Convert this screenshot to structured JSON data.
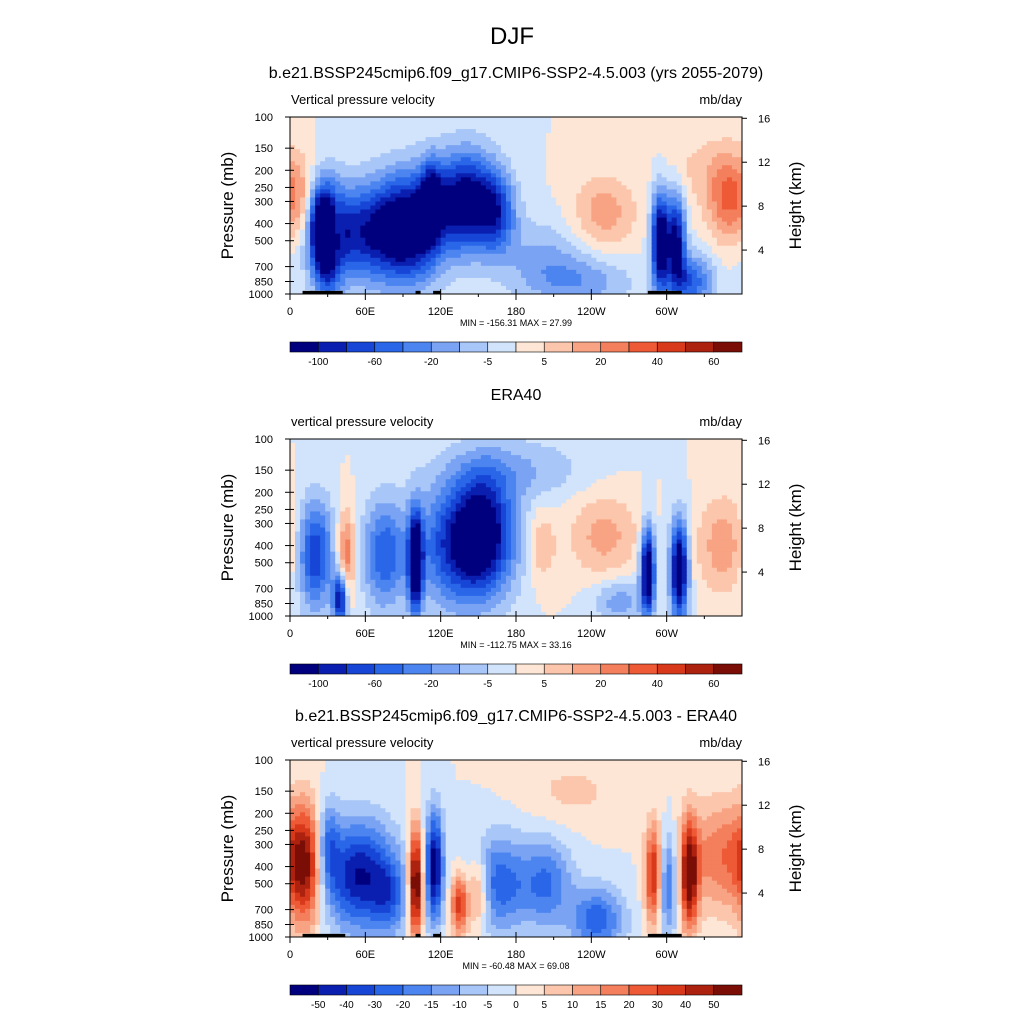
{
  "figure_title": "DJF",
  "colorbar_palettes": {
    "full": [
      "#00007f",
      "#0a1fb0",
      "#1746d6",
      "#2a66e8",
      "#4d85f0",
      "#7aa4f3",
      "#a8c6f7",
      "#d2e4fb",
      "#fde6d5",
      "#fbc6ac",
      "#f8a383",
      "#f47f5c",
      "#ee5a36",
      "#d8391a",
      "#ad220f",
      "#7a0e06"
    ],
    "diff": [
      "#00007f",
      "#0a1fb0",
      "#1746d6",
      "#2a66e8",
      "#4d85f0",
      "#7aa4f3",
      "#a8c6f7",
      "#d2e4fb",
      "#fde6d5",
      "#fbc6ac",
      "#f8a383",
      "#f47f5c",
      "#ee5a36",
      "#d8391a",
      "#ad220f",
      "#7a0e06"
    ]
  },
  "land_color": "#000000",
  "chart_data": [
    {
      "type": "heatmap",
      "title": "b.e21.BSSP245cmip6.f09_g17.CMIP6-SSP2-4.5.003 (yrs 2055-2079)",
      "left_label": "Vertical pressure velocity",
      "right_label": "mb/day",
      "ylabel": "Pressure (mb)",
      "y2label": "Height (km)",
      "x_ticks": [
        "0",
        "60E",
        "120E",
        "180",
        "120W",
        "60W"
      ],
      "x_tick_lon": [
        0,
        60,
        120,
        180,
        240,
        300
      ],
      "xlim": [
        0,
        360
      ],
      "y_ticks": [
        100,
        150,
        200,
        250,
        300,
        400,
        500,
        700,
        850,
        1000
      ],
      "ylim": [
        1000,
        100
      ],
      "y_scale": "log",
      "y2_ticks": [
        "16",
        "12",
        "8",
        "4"
      ],
      "y2_tick_km": [
        16,
        12,
        8,
        4
      ],
      "stats": "MIN = -156.31  MAX =  27.99",
      "colorbar_labels": [
        "-100",
        "-60",
        "-20",
        "-5",
        "5",
        "20",
        "40",
        "60"
      ],
      "land_lon": [
        [
          10,
          42
        ],
        [
          100,
          104
        ],
        [
          114,
          120
        ],
        [
          285,
          312
        ]
      ],
      "features": [
        {
          "lon": 55,
          "p": 450,
          "sx": 28,
          "sy": 0.45,
          "a": -60
        },
        {
          "lon": 95,
          "p": 420,
          "sx": 18,
          "sy": 0.5,
          "a": -70
        },
        {
          "lon": 112,
          "p": 300,
          "sx": 6,
          "sy": 0.35,
          "a": -50
        },
        {
          "lon": 140,
          "p": 300,
          "sx": 18,
          "sy": 0.45,
          "a": -80
        },
        {
          "lon": 165,
          "p": 350,
          "sx": 10,
          "sy": 0.35,
          "a": -40
        },
        {
          "lon": 30,
          "p": 500,
          "sx": 8,
          "sy": 0.5,
          "a": -70
        },
        {
          "lon": 22,
          "p": 400,
          "sx": 5,
          "sy": 0.35,
          "a": -35
        },
        {
          "lon": 38,
          "p": 450,
          "sx": 3,
          "sy": 0.3,
          "a": 25
        },
        {
          "lon": 200,
          "p": 600,
          "sx": 25,
          "sy": 0.35,
          "a": -18
        },
        {
          "lon": 250,
          "p": 350,
          "sx": 18,
          "sy": 0.35,
          "a": 25
        },
        {
          "lon": 295,
          "p": 500,
          "sx": 5,
          "sy": 0.45,
          "a": -90
        },
        {
          "lon": 308,
          "p": 500,
          "sx": 5,
          "sy": 0.45,
          "a": -70
        },
        {
          "lon": 320,
          "p": 850,
          "sx": 12,
          "sy": 0.25,
          "a": -45
        },
        {
          "lon": 350,
          "p": 300,
          "sx": 12,
          "sy": 0.4,
          "a": 40
        },
        {
          "lon": 330,
          "p": 200,
          "sx": 25,
          "sy": 0.35,
          "a": 12
        },
        {
          "lon": 10,
          "p": 300,
          "sx": 8,
          "sy": 0.4,
          "a": 20
        },
        {
          "lon": 230,
          "p": 850,
          "sx": 30,
          "sy": 0.25,
          "a": -25
        }
      ]
    },
    {
      "type": "heatmap",
      "title": "ERA40",
      "left_label": "vertical pressure velocity",
      "right_label": "mb/day",
      "ylabel": "Pressure (mb)",
      "y2label": "Height (km)",
      "x_ticks": [
        "0",
        "60E",
        "120E",
        "180",
        "120W",
        "60W"
      ],
      "x_tick_lon": [
        0,
        60,
        120,
        180,
        240,
        300
      ],
      "xlim": [
        0,
        360
      ],
      "y_ticks": [
        100,
        150,
        200,
        250,
        300,
        400,
        500,
        700,
        850,
        1000
      ],
      "ylim": [
        1000,
        100
      ],
      "y_scale": "log",
      "y2_ticks": [
        "16",
        "12",
        "8",
        "4"
      ],
      "y2_tick_km": [
        16,
        12,
        8,
        4
      ],
      "stats": "MIN = -112.75  MAX =  33.16",
      "colorbar_labels": [
        "-100",
        "-60",
        "-20",
        "-5",
        "5",
        "20",
        "40",
        "60"
      ],
      "land_lon": [],
      "features": [
        {
          "lon": 20,
          "p": 450,
          "sx": 10,
          "sy": 0.5,
          "a": -45
        },
        {
          "lon": 45,
          "p": 450,
          "sx": 5,
          "sy": 0.4,
          "a": 30
        },
        {
          "lon": 75,
          "p": 450,
          "sx": 12,
          "sy": 0.5,
          "a": -35
        },
        {
          "lon": 100,
          "p": 500,
          "sx": 4,
          "sy": 0.45,
          "a": -70
        },
        {
          "lon": 140,
          "p": 400,
          "sx": 25,
          "sy": 0.55,
          "a": -55
        },
        {
          "lon": 155,
          "p": 300,
          "sx": 15,
          "sy": 0.5,
          "a": -30
        },
        {
          "lon": 200,
          "p": 400,
          "sx": 8,
          "sy": 0.35,
          "a": 15
        },
        {
          "lon": 250,
          "p": 350,
          "sx": 20,
          "sy": 0.4,
          "a": 18
        },
        {
          "lon": 285,
          "p": 550,
          "sx": 4,
          "sy": 0.4,
          "a": -70
        },
        {
          "lon": 310,
          "p": 550,
          "sx": 5,
          "sy": 0.45,
          "a": -70
        },
        {
          "lon": 345,
          "p": 400,
          "sx": 15,
          "sy": 0.45,
          "a": 20
        },
        {
          "lon": 40,
          "p": 800,
          "sx": 4,
          "sy": 0.25,
          "a": -55
        },
        {
          "lon": 180,
          "p": 150,
          "sx": 40,
          "sy": 0.3,
          "a": -15
        },
        {
          "lon": 262,
          "p": 820,
          "sx": 15,
          "sy": 0.2,
          "a": -20
        }
      ]
    },
    {
      "type": "heatmap",
      "title": "b.e21.BSSP245cmip6.f09_g17.CMIP6-SSP2-4.5.003 - ERA40",
      "left_label": "vertical pressure velocity",
      "right_label": "mb/day",
      "ylabel": "Pressure (mb)",
      "y2label": "Height (km)",
      "x_ticks": [
        "0",
        "60E",
        "120E",
        "180",
        "120W",
        "60W"
      ],
      "x_tick_lon": [
        0,
        60,
        120,
        180,
        240,
        300
      ],
      "xlim": [
        0,
        360
      ],
      "y_ticks": [
        100,
        150,
        200,
        250,
        300,
        400,
        500,
        700,
        850,
        1000
      ],
      "ylim": [
        1000,
        100
      ],
      "y_scale": "log",
      "y2_ticks": [
        "16",
        "12",
        "8",
        "4"
      ],
      "y2_tick_km": [
        16,
        12,
        8,
        4
      ],
      "stats": "MIN = -60.48  MAX =  69.08",
      "colorbar_labels": [
        "-50",
        "-40",
        "-30",
        "-20",
        "-15",
        "-10",
        "-5",
        "0",
        "5",
        "10",
        "15",
        "20",
        "30",
        "40",
        "50"
      ],
      "land_lon": [
        [
          10,
          44
        ],
        [
          100,
          104
        ],
        [
          114,
          120
        ],
        [
          285,
          312
        ]
      ],
      "features": [
        {
          "lon": 12,
          "p": 400,
          "sx": 10,
          "sy": 0.55,
          "a": 45
        },
        {
          "lon": 30,
          "p": 300,
          "sx": 6,
          "sy": 0.4,
          "a": -25
        },
        {
          "lon": 55,
          "p": 450,
          "sx": 20,
          "sy": 0.5,
          "a": -45
        },
        {
          "lon": 100,
          "p": 500,
          "sx": 4,
          "sy": 0.5,
          "a": 60
        },
        {
          "lon": 115,
          "p": 400,
          "sx": 5,
          "sy": 0.5,
          "a": -50
        },
        {
          "lon": 135,
          "p": 650,
          "sx": 5,
          "sy": 0.3,
          "a": 40
        },
        {
          "lon": 150,
          "p": 550,
          "sx": 6,
          "sy": 0.35,
          "a": 30
        },
        {
          "lon": 165,
          "p": 500,
          "sx": 18,
          "sy": 0.45,
          "a": -30
        },
        {
          "lon": 205,
          "p": 500,
          "sx": 14,
          "sy": 0.4,
          "a": -25
        },
        {
          "lon": 245,
          "p": 800,
          "sx": 15,
          "sy": 0.3,
          "a": -30
        },
        {
          "lon": 290,
          "p": 450,
          "sx": 5,
          "sy": 0.45,
          "a": 45
        },
        {
          "lon": 300,
          "p": 500,
          "sx": 6,
          "sy": 0.45,
          "a": -30
        },
        {
          "lon": 318,
          "p": 450,
          "sx": 5,
          "sy": 0.5,
          "a": 50
        },
        {
          "lon": 345,
          "p": 350,
          "sx": 20,
          "sy": 0.5,
          "a": 25
        },
        {
          "lon": 80,
          "p": 600,
          "sx": 10,
          "sy": 0.35,
          "a": -20
        },
        {
          "lon": 225,
          "p": 150,
          "sx": 30,
          "sy": 0.3,
          "a": 8
        }
      ]
    }
  ]
}
